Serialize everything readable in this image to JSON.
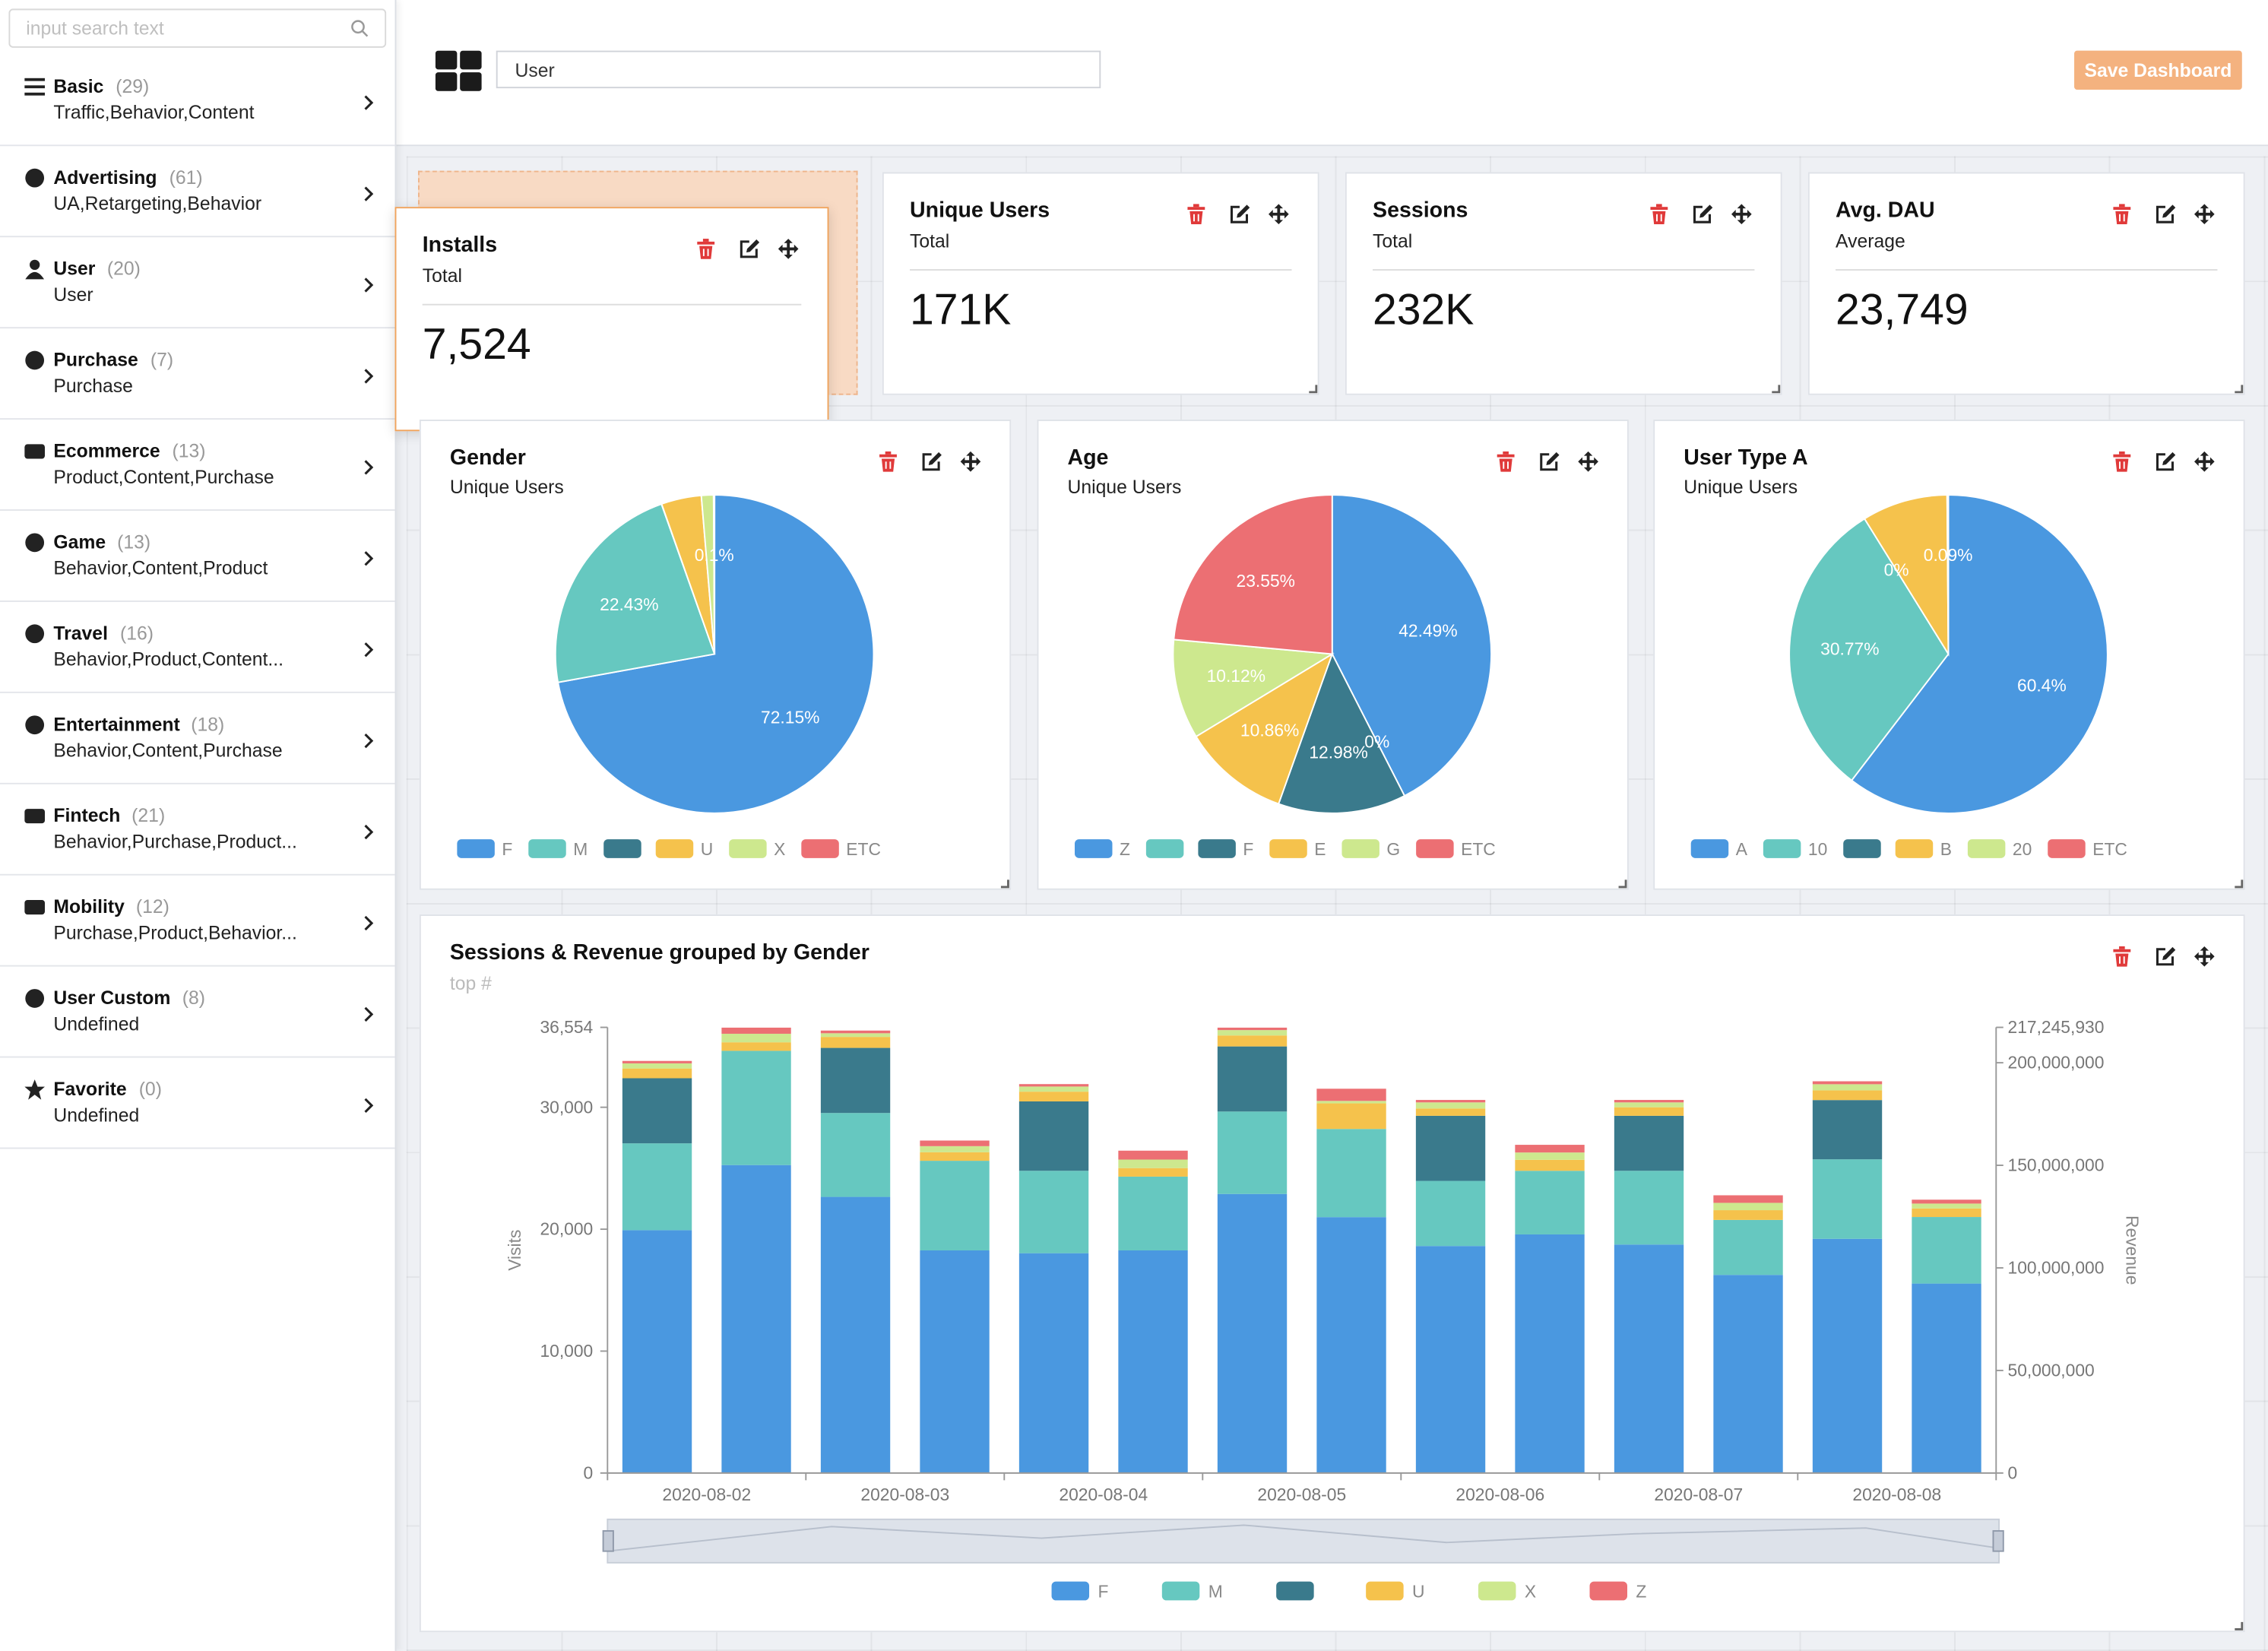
{
  "sidebar": {
    "search_placeholder": "input search text",
    "items": [
      {
        "label": "Basic",
        "count": "(29)",
        "description": "Traffic,Behavior,Content"
      },
      {
        "label": "Advertising",
        "count": "(61)",
        "description": "UA,Retargeting,Behavior"
      },
      {
        "label": "User",
        "count": "(20)",
        "description": "User"
      },
      {
        "label": "Purchase",
        "count": "(7)",
        "description": "Purchase"
      },
      {
        "label": "Ecommerce",
        "count": "(13)",
        "description": "Product,Content,Purchase"
      },
      {
        "label": "Game",
        "count": "(13)",
        "description": "Behavior,Content,Product"
      },
      {
        "label": "Travel",
        "count": "(16)",
        "description": "Behavior,Product,Content..."
      },
      {
        "label": "Entertainment",
        "count": "(18)",
        "description": "Behavior,Content,Purchase"
      },
      {
        "label": "Fintech",
        "count": "(21)",
        "description": "Behavior,Purchase,Product..."
      },
      {
        "label": "Mobility",
        "count": "(12)",
        "description": "Purchase,Product,Behavior..."
      },
      {
        "label": "User Custom",
        "count": "(8)",
        "description": "Undefined"
      },
      {
        "label": "Favorite",
        "count": "(0)",
        "description": "Undefined"
      }
    ]
  },
  "header": {
    "dashboard_name": "User",
    "save_button": "Save Dashboard"
  },
  "widgets": [
    {
      "title": "Installs",
      "subtitle": "Total",
      "value": "7,524"
    },
    {
      "title": "Unique Users",
      "subtitle": "Total",
      "value": "171K"
    },
    {
      "title": "Sessions",
      "subtitle": "Total",
      "value": "232K"
    },
    {
      "title": "Avg. DAU",
      "subtitle": "Average",
      "value": "23,749"
    }
  ],
  "chart_data": [
    {
      "type": "pie",
      "title": "Gender",
      "subtitle": "Unique Users",
      "categories": [
        "F",
        "M",
        null,
        "U",
        "X",
        "ETC"
      ],
      "values": [
        72.15,
        22.43,
        0.02,
        4.07,
        1.23,
        0.1
      ],
      "value_labels": [
        "72.15%",
        "22.43%",
        null,
        null,
        null,
        "0.1%"
      ],
      "colors": [
        "#4a98e0",
        "#66c8c0",
        "#3a7a8c",
        "#f5c24c",
        "#cde88e",
        "#ec6f73"
      ]
    },
    {
      "type": "pie",
      "title": "Age",
      "subtitle": "Unique Users",
      "categories": [
        "Z",
        null,
        "F",
        "E",
        "G",
        "ETC"
      ],
      "values": [
        42.49,
        0,
        12.98,
        10.86,
        10.12,
        23.55
      ],
      "value_labels": [
        "42.49%",
        "0%",
        "12.98%",
        "10.86%",
        "10.12%",
        "23.55%"
      ],
      "colors": [
        "#4a98e0",
        "#66c8c0",
        "#3a7a8c",
        "#f5c24c",
        "#cde88e",
        "#ec6f73"
      ]
    },
    {
      "type": "pie",
      "title": "User Type A",
      "subtitle": "Unique Users",
      "categories": [
        "A",
        "10",
        null,
        "B",
        "20",
        "ETC"
      ],
      "values": [
        60.4,
        30.77,
        0,
        8.7,
        0.04,
        0.09
      ],
      "value_labels": [
        "60.4%",
        "30.77%",
        "0%",
        null,
        null,
        "0.09%"
      ],
      "colors": [
        "#4a98e0",
        "#66c8c0",
        "#3a7a8c",
        "#f5c24c",
        "#cde88e",
        "#ec6f73"
      ]
    },
    {
      "type": "bar",
      "stacked": true,
      "title": "Sessions & Revenue grouped by Gender",
      "subtitle": "top #",
      "y_label": "Visits",
      "y2_label": "Revenue",
      "categories": [
        "2020-08-02",
        null,
        "2020-08-03",
        null,
        "2020-08-04",
        null,
        "2020-08-05",
        null,
        "2020-08-06",
        null,
        "2020-08-07",
        null,
        "2020-08-08",
        null
      ],
      "series": [
        {
          "name": "F",
          "color": "#4a98e0",
          "values": [
            19920,
            25260,
            22650,
            18260,
            18030,
            18260,
            22890,
            20990,
            18620,
            19570,
            18740,
            16250,
            19210,
            15540
          ]
        },
        {
          "name": "M",
          "color": "#66c8c0",
          "values": [
            7120,
            9370,
            6880,
            7350,
            6760,
            6050,
            6760,
            7230,
            5340,
            5220,
            6050,
            4510,
            6520,
            5460
          ]
        },
        {
          "name": null,
          "color": "#3a7a8c",
          "values": [
            5340,
            0,
            5340,
            0,
            5690,
            0,
            5340,
            0,
            5340,
            0,
            4510,
            0,
            4860,
            0
          ]
        },
        {
          "name": "U",
          "color": "#f5c24c",
          "values": [
            800,
            700,
            900,
            700,
            800,
            700,
            900,
            2100,
            600,
            900,
            700,
            800,
            800,
            700
          ]
        },
        {
          "name": "X",
          "color": "#cde88e",
          "values": [
            420,
            700,
            300,
            500,
            420,
            700,
            440,
            200,
            500,
            600,
            400,
            600,
            500,
            400
          ]
        },
        {
          "name": "Z",
          "color": "#ec6f73",
          "values": [
            200,
            500,
            220,
            460,
            200,
            730,
            200,
            1000,
            200,
            630,
            200,
            620,
            240,
            320
          ]
        }
      ],
      "ylim": [
        0,
        36554
      ],
      "yticks": [
        0,
        {
          "value": 10000,
          "label": "10,000"
        },
        {
          "value": 20000,
          "label": "20,000"
        },
        {
          "value": 30000,
          "label": "30,000"
        },
        {
          "value": 36554,
          "label": "36,554"
        }
      ],
      "y2lim": [
        0,
        217245930
      ],
      "y2ticks": [
        0,
        {
          "value": 50000000,
          "label": "50,000,000"
        },
        {
          "value": 100000000,
          "label": "100,000,000"
        },
        {
          "value": 150000000,
          "label": "150,000,000"
        },
        {
          "value": 200000000,
          "label": "200,000,000"
        },
        {
          "value": 217245930,
          "label": "217,245,930"
        }
      ],
      "grid": false
    }
  ]
}
